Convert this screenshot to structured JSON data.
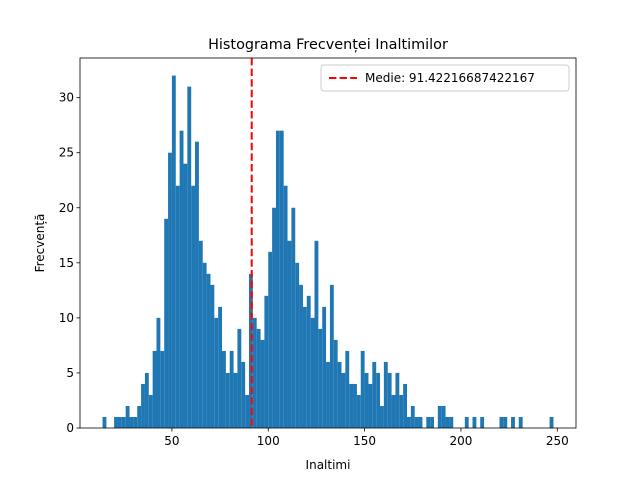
{
  "chart_data": {
    "type": "histogram",
    "title": "Histograma Frecvenței Inaltimilor",
    "xlabel": "Inaltimi",
    "ylabel": "Frecvență",
    "color": "#1f77b4",
    "bins": [
      14,
      16,
      18,
      20,
      22,
      24,
      26,
      28,
      30,
      32,
      34,
      36,
      38,
      40,
      42,
      44,
      46,
      48,
      50,
      52,
      54,
      56,
      58,
      60,
      62,
      64,
      66,
      68,
      70,
      72,
      74,
      76,
      78,
      80,
      82,
      84,
      86,
      88,
      90,
      92,
      94,
      96,
      98,
      100,
      102,
      104,
      106,
      108,
      110,
      112,
      114,
      116,
      118,
      120,
      122,
      124,
      126,
      128,
      130,
      132,
      134,
      136,
      138,
      140,
      142,
      144,
      146,
      148,
      150,
      152,
      154,
      156,
      158,
      160,
      162,
      164,
      166,
      168,
      170,
      172,
      174,
      176,
      178,
      180,
      182,
      184,
      186,
      188,
      190,
      192,
      194,
      196,
      198,
      200,
      202,
      204,
      206,
      208,
      210,
      212,
      214,
      216,
      218,
      220,
      222,
      224,
      226,
      228,
      230,
      232,
      234,
      236,
      238,
      240,
      242,
      244,
      246,
      248
    ],
    "values": [
      1,
      0,
      0,
      1,
      1,
      1,
      2,
      1,
      1,
      2,
      4,
      5,
      3,
      7,
      10,
      7,
      19,
      25,
      32,
      22,
      27,
      24,
      31,
      22,
      26,
      17,
      15,
      14,
      13,
      10,
      11,
      7,
      5,
      7,
      5,
      9,
      6,
      3,
      14,
      10,
      9,
      8,
      12,
      16,
      20,
      27,
      27,
      22,
      17,
      20,
      15,
      13,
      11,
      12,
      10,
      17,
      9,
      11,
      6,
      13,
      8,
      6,
      5,
      7,
      4,
      4,
      3,
      7,
      5,
      4,
      6,
      5,
      2,
      6,
      5,
      3,
      5,
      3,
      4,
      1,
      2,
      1,
      1,
      0,
      1,
      1,
      0,
      2,
      2,
      1,
      1,
      0,
      0,
      0,
      1,
      0,
      1,
      0,
      1,
      0,
      0,
      0,
      0,
      1,
      1,
      0,
      1,
      0,
      1,
      0,
      0,
      0,
      0,
      0,
      0,
      0,
      1
    ],
    "mean": 91.42216687422167,
    "mean_label": "Medie: 91.42216687422167",
    "mean_color": "#ff0000",
    "legend": "upper right",
    "xlim": [
      2.3,
      259.7
    ],
    "ylim": [
      0,
      33.6
    ],
    "xticks": [
      50,
      100,
      150,
      200,
      250
    ],
    "yticks": [
      0,
      5,
      10,
      15,
      20,
      25,
      30
    ]
  }
}
